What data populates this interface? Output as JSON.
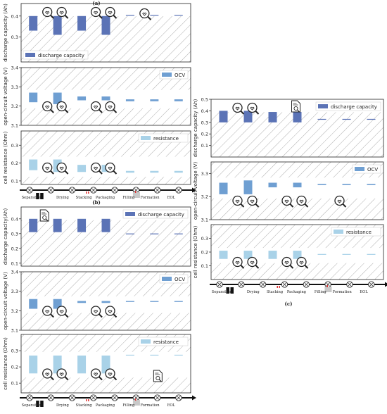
{
  "figure": {
    "stages": [
      "Separation",
      "Drying",
      "Stacking",
      "Packaging",
      "Filling",
      "Formation",
      "EOL"
    ],
    "colors": {
      "capacity": "#5b73b6",
      "ocv": "#6f9fd2",
      "resistance": "#a9d2e8",
      "hatch": "#9a9a9a"
    },
    "icons": {
      "magnifier": "magnifier-icon",
      "document": "document-magnifier-icon",
      "battery": "battery-cell-icon",
      "filling": "filling-machine-icon",
      "pins": "stacking-pins-icon",
      "stage_node": "crossed-circle-icon"
    },
    "panels": [
      {
        "label": "(a)",
        "plots": [
          {
            "kind": "capacity",
            "ylabel": "discharge capacity (Ah)",
            "legend": "discharge capacity",
            "ticks": [
              "0.3",
              "0.4"
            ],
            "yticks_values": [
              0.3,
              0.4
            ],
            "ylim": [
              0.18,
              0.46
            ],
            "bars": [
              [
                0.4,
                0.33
              ],
              [
                0.4,
                0.31
              ],
              [
                0.4,
                0.33
              ],
              [
                0.4,
                0.31
              ],
              [
                0.406,
                0.402
              ],
              [
                0.406,
                0.402
              ],
              [
                0.406,
                0.402
              ]
            ]
          },
          {
            "kind": "ocv",
            "ylabel": "open-circuit voltage (V)",
            "legend": "OCV",
            "ticks": [
              "3.1",
              "3.2",
              "3.3",
              "3.4"
            ],
            "yticks_values": [
              3.1,
              3.2,
              3.3,
              3.4
            ],
            "ylim": [
              3.1,
              3.4
            ],
            "bars": [
              [
                3.27,
                3.22
              ],
              [
                3.27,
                3.21
              ],
              [
                3.25,
                3.23
              ],
              [
                3.25,
                3.23
              ],
              [
                3.235,
                3.225
              ],
              [
                3.235,
                3.225
              ],
              [
                3.235,
                3.225
              ]
            ]
          },
          {
            "kind": "resistance",
            "ylabel": "cell resistance (Ohm)",
            "legend": "resistance",
            "ticks": [
              "0.1",
              "0.2",
              "0.3"
            ],
            "yticks_values": [
              0.1,
              0.2,
              0.3
            ],
            "ylim": [
              0.08,
              0.38
            ],
            "bars": [
              [
                0.22,
                0.16
              ],
              [
                0.22,
                0.15
              ],
              [
                0.19,
                0.15
              ],
              [
                0.19,
                0.15
              ],
              [
                0.156,
                0.146
              ],
              [
                0.156,
                0.146
              ],
              [
                0.156,
                0.146
              ]
            ]
          }
        ]
      },
      {
        "label": "(b)",
        "plots": [
          {
            "kind": "capacity",
            "ylabel": "discharge capacity(Ah)",
            "legend": "discharge capacity",
            "ticks": [
              "0.1",
              "0.2",
              "0.3",
              "0.4"
            ],
            "yticks_values": [
              0.1,
              0.2,
              0.3,
              0.4
            ],
            "ylim": [
              0.08,
              0.48
            ],
            "bars": [
              [
                0.4,
                0.31
              ],
              [
                0.4,
                0.31
              ],
              [
                0.4,
                0.31
              ],
              [
                0.4,
                0.31
              ],
              [
                0.301,
                0.296
              ],
              [
                0.301,
                0.296
              ],
              [
                0.301,
                0.296
              ]
            ]
          },
          {
            "kind": "ocv",
            "ylabel": "open-circuit voltage (V)",
            "legend": "OCV",
            "ticks": [
              "3.1",
              "3.2",
              "3.3",
              "3.4"
            ],
            "yticks_values": [
              3.1,
              3.2,
              3.3,
              3.4
            ],
            "ylim": [
              3.1,
              3.4
            ],
            "bars": [
              [
                3.26,
                3.21
              ],
              [
                3.26,
                3.21
              ],
              [
                3.25,
                3.24
              ],
              [
                3.25,
                3.24
              ],
              [
                3.25,
                3.245
              ],
              [
                3.25,
                3.245
              ],
              [
                3.25,
                3.245
              ]
            ]
          },
          {
            "kind": "resistance",
            "ylabel": "cell resistance (Ohm)",
            "legend": "resistance",
            "ticks": [
              "0.1",
              "0.2",
              "0.3"
            ],
            "yticks_values": [
              0.1,
              0.2,
              0.3
            ],
            "ylim": [
              0.04,
              0.4
            ],
            "bars": [
              [
                0.27,
                0.16
              ],
              [
                0.27,
                0.16
              ],
              [
                0.27,
                0.16
              ],
              [
                0.27,
                0.16
              ],
              [
                0.275,
                0.27
              ],
              [
                0.275,
                0.27
              ],
              [
                0.275,
                0.27
              ]
            ]
          }
        ]
      },
      {
        "label": "(c)",
        "plots": [
          {
            "kind": "capacity",
            "ylabel": "discharge capacity (Ah)",
            "legend": "discharge capacity",
            "ticks": [
              "0.1",
              "0.2",
              "0.3",
              "0.4",
              "0.5"
            ],
            "yticks_values": [
              0.1,
              0.2,
              0.3,
              0.4,
              0.5
            ],
            "ylim": [
              0.0,
              0.5
            ],
            "bars": [
              [
                0.4,
                0.3
              ],
              [
                0.4,
                0.3
              ],
              [
                0.39,
                0.3
              ],
              [
                0.39,
                0.3
              ],
              [
                0.33,
                0.325
              ],
              [
                0.33,
                0.325
              ],
              [
                0.33,
                0.325
              ]
            ]
          },
          {
            "kind": "ocv",
            "ylabel": "open-circuit voltage (V)",
            "legend": "OCV",
            "ticks": [
              "3.1",
              "3.2",
              "3.3"
            ],
            "yticks_values": [
              3.1,
              3.2,
              3.3
            ],
            "ylim": [
              3.1,
              3.35
            ],
            "bars": [
              [
                3.26,
                3.21
              ],
              [
                3.27,
                3.21
              ],
              [
                3.26,
                3.24
              ],
              [
                3.26,
                3.24
              ],
              [
                3.255,
                3.25
              ],
              [
                3.255,
                3.25
              ],
              [
                3.255,
                3.25
              ]
            ]
          },
          {
            "kind": "resistance",
            "ylabel": "cell resistance (Ohm)",
            "legend": "resistance",
            "ticks": [
              "0.1",
              "0.2",
              "0.3"
            ],
            "yticks_values": [
              0.1,
              0.2,
              0.3
            ],
            "ylim": [
              0.0,
              0.4
            ],
            "bars": [
              [
                0.21,
                0.15
              ],
              [
                0.21,
                0.15
              ],
              [
                0.21,
                0.15
              ],
              [
                0.21,
                0.15
              ],
              [
                0.186,
                0.182
              ],
              [
                0.186,
                0.182
              ],
              [
                0.186,
                0.182
              ]
            ]
          }
        ]
      }
    ]
  },
  "chart_data": [
    {
      "type": "bar",
      "panel": "(a)",
      "ylabel": "discharge capacity (Ah)",
      "categories": [
        "Separation",
        "Drying",
        "Stacking",
        "Packaging",
        "Filling",
        "Formation",
        "EOL"
      ],
      "series": [
        {
          "name": "discharge capacity",
          "ranges": [
            [
              0.33,
              0.4
            ],
            [
              0.31,
              0.4
            ],
            [
              0.33,
              0.4
            ],
            [
              0.31,
              0.4
            ],
            [
              0.402,
              0.406
            ],
            [
              0.402,
              0.406
            ],
            [
              0.402,
              0.406
            ]
          ]
        }
      ],
      "ylim": [
        0.18,
        0.46
      ]
    },
    {
      "type": "bar",
      "panel": "(a)",
      "ylabel": "open-circuit voltage (V)",
      "categories": [
        "Separation",
        "Drying",
        "Stacking",
        "Packaging",
        "Filling",
        "Formation",
        "EOL"
      ],
      "series": [
        {
          "name": "OCV",
          "ranges": [
            [
              3.22,
              3.27
            ],
            [
              3.21,
              3.27
            ],
            [
              3.23,
              3.25
            ],
            [
              3.23,
              3.25
            ],
            [
              3.225,
              3.235
            ],
            [
              3.225,
              3.235
            ],
            [
              3.225,
              3.235
            ]
          ]
        }
      ],
      "ylim": [
        3.1,
        3.4
      ]
    },
    {
      "type": "bar",
      "panel": "(a)",
      "ylabel": "cell resistance (Ohm)",
      "categories": [
        "Separation",
        "Drying",
        "Stacking",
        "Packaging",
        "Filling",
        "Formation",
        "EOL"
      ],
      "series": [
        {
          "name": "resistance",
          "ranges": [
            [
              0.16,
              0.22
            ],
            [
              0.15,
              0.22
            ],
            [
              0.15,
              0.19
            ],
            [
              0.15,
              0.19
            ],
            [
              0.146,
              0.156
            ],
            [
              0.146,
              0.156
            ],
            [
              0.146,
              0.156
            ]
          ]
        }
      ],
      "ylim": [
        0.08,
        0.38
      ]
    },
    {
      "type": "bar",
      "panel": "(b)",
      "ylabel": "discharge capacity(Ah)",
      "categories": [
        "Separation",
        "Drying",
        "Stacking",
        "Packaging",
        "Filling",
        "Formation",
        "EOL"
      ],
      "series": [
        {
          "name": "discharge capacity",
          "ranges": [
            [
              0.31,
              0.4
            ],
            [
              0.31,
              0.4
            ],
            [
              0.31,
              0.4
            ],
            [
              0.31,
              0.4
            ],
            [
              0.296,
              0.301
            ],
            [
              0.296,
              0.301
            ],
            [
              0.296,
              0.301
            ]
          ]
        }
      ],
      "ylim": [
        0.08,
        0.48
      ]
    },
    {
      "type": "bar",
      "panel": "(b)",
      "ylabel": "open-circuit voltage (V)",
      "categories": [
        "Separation",
        "Drying",
        "Stacking",
        "Packaging",
        "Filling",
        "Formation",
        "EOL"
      ],
      "series": [
        {
          "name": "OCV",
          "ranges": [
            [
              3.21,
              3.26
            ],
            [
              3.21,
              3.26
            ],
            [
              3.24,
              3.25
            ],
            [
              3.24,
              3.25
            ],
            [
              3.245,
              3.25
            ],
            [
              3.245,
              3.25
            ],
            [
              3.245,
              3.25
            ]
          ]
        }
      ],
      "ylim": [
        3.1,
        3.4
      ]
    },
    {
      "type": "bar",
      "panel": "(b)",
      "ylabel": "cell resistance (Ohm)",
      "categories": [
        "Separation",
        "Drying",
        "Stacking",
        "Packaging",
        "Filling",
        "Formation",
        "EOL"
      ],
      "series": [
        {
          "name": "resistance",
          "ranges": [
            [
              0.16,
              0.27
            ],
            [
              0.16,
              0.27
            ],
            [
              0.16,
              0.27
            ],
            [
              0.16,
              0.27
            ],
            [
              0.27,
              0.275
            ],
            [
              0.27,
              0.275
            ],
            [
              0.27,
              0.275
            ]
          ]
        }
      ],
      "ylim": [
        0.04,
        0.4
      ]
    },
    {
      "type": "bar",
      "panel": "(c)",
      "ylabel": "discharge capacity (Ah)",
      "categories": [
        "Separation",
        "Drying",
        "Stacking",
        "Packaging",
        "Filling",
        "Formation",
        "EOL"
      ],
      "series": [
        {
          "name": "discharge capacity",
          "ranges": [
            [
              0.3,
              0.4
            ],
            [
              0.3,
              0.4
            ],
            [
              0.3,
              0.39
            ],
            [
              0.3,
              0.39
            ],
            [
              0.325,
              0.33
            ],
            [
              0.325,
              0.33
            ],
            [
              0.325,
              0.33
            ]
          ]
        }
      ],
      "ylim": [
        0.0,
        0.5
      ]
    },
    {
      "type": "bar",
      "panel": "(c)",
      "ylabel": "open-circuit voltage (V)",
      "categories": [
        "Separation",
        "Drying",
        "Stacking",
        "Packaging",
        "Filling",
        "Formation",
        "EOL"
      ],
      "series": [
        {
          "name": "OCV",
          "ranges": [
            [
              3.21,
              3.26
            ],
            [
              3.21,
              3.27
            ],
            [
              3.24,
              3.26
            ],
            [
              3.24,
              3.26
            ],
            [
              3.25,
              3.255
            ],
            [
              3.25,
              3.255
            ],
            [
              3.25,
              3.255
            ]
          ]
        }
      ],
      "ylim": [
        3.1,
        3.35
      ]
    },
    {
      "type": "bar",
      "panel": "(c)",
      "ylabel": "cell resistance (Ohm)",
      "categories": [
        "Separation",
        "Drying",
        "Stacking",
        "Packaging",
        "Filling",
        "Formation",
        "EOL"
      ],
      "series": [
        {
          "name": "resistance",
          "ranges": [
            [
              0.15,
              0.21
            ],
            [
              0.15,
              0.21
            ],
            [
              0.15,
              0.21
            ],
            [
              0.15,
              0.21
            ],
            [
              0.182,
              0.186
            ],
            [
              0.182,
              0.186
            ],
            [
              0.182,
              0.186
            ]
          ]
        }
      ],
      "ylim": [
        0.0,
        0.4
      ]
    }
  ]
}
